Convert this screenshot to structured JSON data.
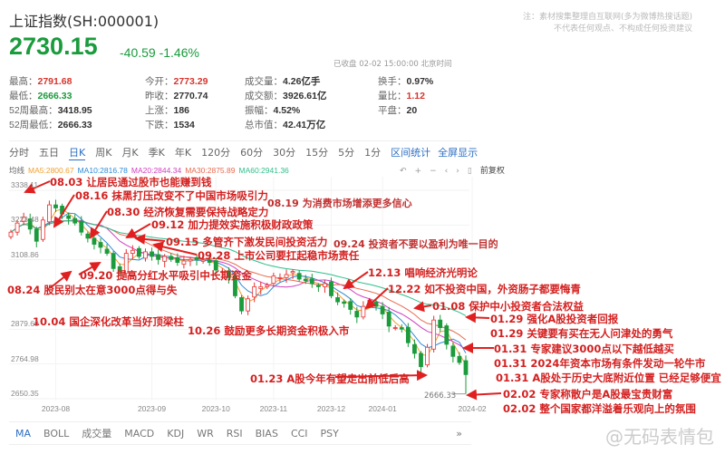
{
  "header": {
    "title": "上证指数(SH:000001)",
    "price": "2730.15",
    "change": "-40.59",
    "change_pct": "-1.46%",
    "status": "已收盘 02-02 15:00:00 北京时间"
  },
  "note": [
    "注：素材搜集整理自互联网(多为微博热搜话题)",
    "不代表任何观点、不构成任何投资建议"
  ],
  "stats": [
    {
      "label": "最高：",
      "value": "2791.68",
      "color": "red"
    },
    {
      "label": "今开：",
      "value": "2773.29",
      "color": "red"
    },
    {
      "label": "成交量：",
      "value": "4.26亿手"
    },
    {
      "label": "换手：",
      "value": "0.97%"
    },
    {
      "label": "最低：",
      "value": "2666.33",
      "color": "green"
    },
    {
      "label": "昨收：",
      "value": "2770.74"
    },
    {
      "label": "成交额：",
      "value": "3926.61亿"
    },
    {
      "label": "量比：",
      "value": "1.12",
      "color": "red"
    },
    {
      "label": "52周最高：",
      "value": "3418.95"
    },
    {
      "label": "上涨：",
      "value": "186"
    },
    {
      "label": "振幅：",
      "value": "4.52%"
    },
    {
      "label": "平盘：",
      "value": "20"
    },
    {
      "label": "52周最低：",
      "value": "2666.33"
    },
    {
      "label": "下跌：",
      "value": "1534"
    },
    {
      "label": "总市值：",
      "value": "42.41万亿"
    }
  ],
  "period_tabs": [
    "分时",
    "五日",
    "日K",
    "周K",
    "月K",
    "季K",
    "年K",
    "120分",
    "60分",
    "30分",
    "15分",
    "5分",
    "1分"
  ],
  "active_period": "日K",
  "right_tabs": [
    "区间统计",
    "全屏显示"
  ],
  "ma_legend": {
    "label": "均线",
    "items": [
      {
        "text": "MA5:2800.67",
        "color": "#f0a030"
      },
      {
        "text": "MA10:2816.78",
        "color": "#2e8bd8"
      },
      {
        "text": "MA20:2844.34",
        "color": "#d040c0"
      },
      {
        "text": "MA30:2875.89",
        "color": "#e86a50"
      },
      {
        "text": "MA60:2941.36",
        "color": "#2fbf8a"
      }
    ]
  },
  "chart_controls": {
    "icons": [
      "undo-icon",
      "zoom-in-icon",
      "zoom-out-icon",
      "left-icon",
      "right-icon",
      "pause-icon"
    ],
    "adjust_label": "前复权"
  },
  "chart_data": {
    "type": "candlestick",
    "y_ticks": [
      "3338.11",
      "3223.48",
      "3108.86",
      "2879.60",
      "2764.98",
      "2650.35"
    ],
    "ylim": [
      2650.35,
      3338.11
    ],
    "x_ticks": [
      {
        "label": "2023-08",
        "index": 7
      },
      {
        "label": "2023-09",
        "index": 22
      },
      {
        "label": "2023-10",
        "index": 32
      },
      {
        "label": "2023-11",
        "index": 41
      },
      {
        "label": "2023-12",
        "index": 50
      },
      {
        "label": "2024-01",
        "index": 58
      },
      {
        "label": "2024-02",
        "index": 72
      }
    ],
    "close": [
      3200,
      3230,
      3250,
      3210,
      3170,
      3240,
      3290,
      3280,
      3260,
      3245,
      3230,
      3200,
      3180,
      3160,
      3150,
      3130,
      3080,
      3070,
      3130,
      3140,
      3120,
      3135,
      3120,
      3110,
      3120,
      3110,
      3100,
      3105,
      3110,
      3110,
      3108,
      3100,
      3075,
      3070,
      3050,
      2990,
      2940,
      2980,
      3020,
      3020,
      3025,
      3055,
      3050,
      3060,
      3070,
      3045,
      3040,
      3030,
      3020,
      3030,
      2990,
      2970,
      2965,
      2945,
      2920,
      2955,
      2975,
      2955,
      2930,
      2890,
      2885,
      2880,
      2835,
      2800,
      2756,
      2820,
      2910,
      2885,
      2830,
      2790,
      2770,
      2730
    ],
    "last_low": 2666.33,
    "low_label": "2666.33",
    "colors": {
      "up": "#e93030",
      "down": "#1a9b3c"
    }
  },
  "annotations": [
    "08.03 让居民通过股市也能赚到钱",
    "08.16 抹黑打压改变不了中国市场吸引力",
    "08.30 经济恢复需要保持战略定力",
    "08.19 为消费市场增添更多信心",
    "09.12 加力提效实施积极财政政策",
    "09.15 多管齐下激发民间投资活力",
    "09.24 投资者不要以盈利为唯一目的",
    "09.28 上市公司要扛起稳市场责任",
    "09.20 提高分红水平吸引中长期资金",
    "12.13 唱响经济光明论",
    "08.24 股民别太在意3000点得与失",
    "12.22 如不投资中国，外资肠子都要悔青",
    "01.08 保护中小投资者合法权益",
    "10.04 国企深化改革当好顶梁柱",
    "01.29 强化A股投资者回报",
    "10.26 鼓励更多长期资金积极入市",
    "01.29 关键要有买在无人问津处的勇气",
    "01.31 专家建议3000点以下越低越买",
    "01.31 2024年资本市场有条件发动一轮牛市",
    "01.23 A股今年有望走出前低后高",
    "01.31 A股处于历史大底附近位置 已经足够便宜",
    "02.02 专家称散户是A股最宝贵财富",
    "02.02 整个国家都洋溢着乐观向上的氛围"
  ],
  "indicator_tabs": [
    "MA",
    "BOLL",
    "成交量",
    "MACD",
    "KDJ",
    "WR",
    "RSI",
    "BIAS",
    "CCI",
    "PSY"
  ],
  "more_label": "»",
  "watermark": "@无码表情包"
}
